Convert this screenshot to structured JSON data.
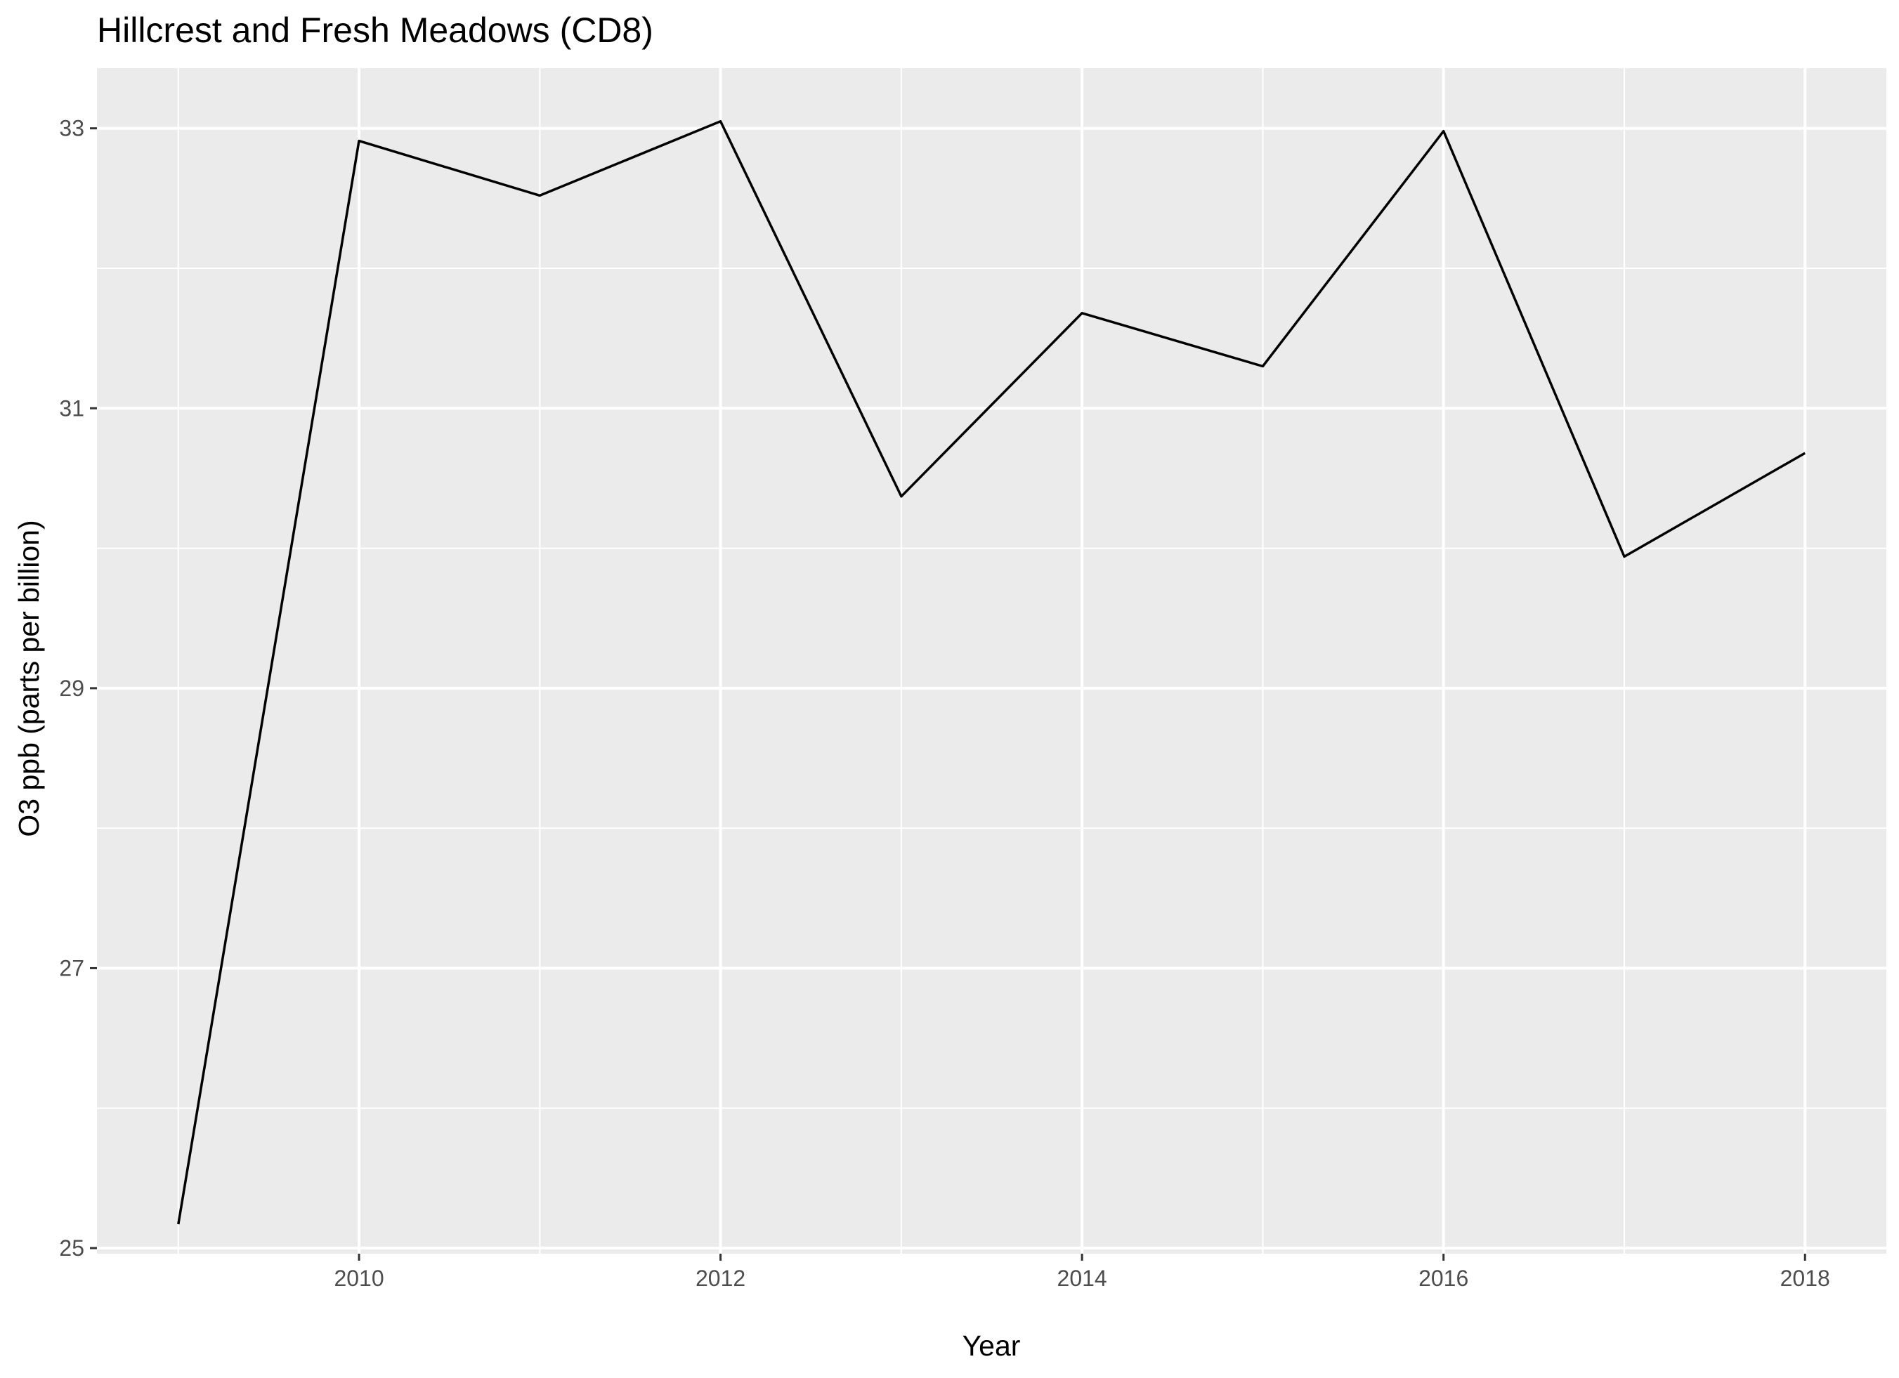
{
  "chart_data": {
    "type": "line",
    "title": "Hillcrest and Fresh Meadows (CD8)",
    "xlabel": "Year",
    "ylabel": "O3 ppb (parts per billion)",
    "x": [
      2009,
      2010,
      2011,
      2012,
      2013,
      2014,
      2015,
      2016,
      2017,
      2018
    ],
    "series": [
      {
        "values": [
          25.17,
          32.91,
          32.52,
          33.05,
          30.37,
          31.68,
          31.3,
          32.98,
          29.94,
          30.68
        ]
      }
    ],
    "xlim": [
      2008.55,
      2018.45
    ],
    "ylim": [
      24.96,
      33.43
    ],
    "x_ticks": [
      2010,
      2012,
      2014,
      2016,
      2018
    ],
    "x_tick_labels": [
      "2010",
      "2012",
      "2014",
      "2016",
      "2018"
    ],
    "y_ticks": [
      25,
      27,
      29,
      31,
      33
    ],
    "y_tick_labels": [
      "25",
      "27",
      "29",
      "31",
      "33"
    ],
    "grid": true,
    "background": "#ebebeb",
    "grid_color": "#ffffff",
    "line_color": "#000000",
    "legend": "none"
  }
}
